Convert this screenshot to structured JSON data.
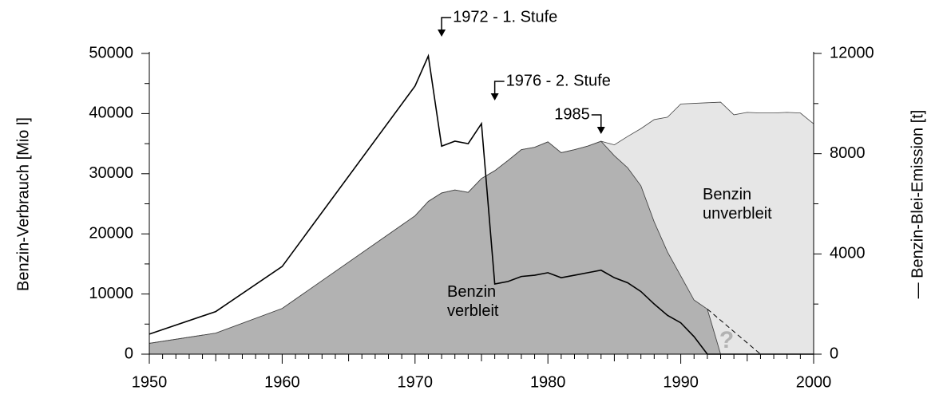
{
  "chart_data": {
    "type": "area",
    "stacked": true,
    "x": [
      1950,
      1955,
      1960,
      1970,
      1971,
      1972,
      1973,
      1974,
      1975,
      1976,
      1977,
      1978,
      1979,
      1980,
      1981,
      1982,
      1983,
      1984,
      1985,
      1986,
      1987,
      1988,
      1989,
      1990,
      1991,
      1992,
      1993,
      1994,
      1995,
      1996,
      1997,
      1998,
      1999,
      2000
    ],
    "series": [
      {
        "name": "Benzin verbleit",
        "color": "#b2b2b2",
        "values": [
          1800,
          3500,
          7600,
          23000,
          25400,
          26800,
          27300,
          26900,
          29200,
          30500,
          32200,
          34000,
          34400,
          35300,
          33500,
          34000,
          34600,
          35400,
          33000,
          31000,
          28000,
          22000,
          17000,
          13000,
          9000,
          7500,
          0,
          0,
          0,
          0,
          0,
          0,
          0,
          0
        ]
      },
      {
        "name": "Benzin unverbleit",
        "color": "#e6e6e6",
        "values": [
          0,
          0,
          0,
          0,
          0,
          0,
          0,
          0,
          0,
          0,
          0,
          0,
          0,
          0,
          0,
          0,
          0,
          0,
          1800,
          5200,
          9500,
          17000,
          22400,
          28600,
          32700,
          34300,
          41900,
          39800,
          40200,
          40100,
          40100,
          40200,
          40100,
          38300
        ]
      },
      {
        "type": "line",
        "axis": "y2",
        "color": "#000000",
        "values": [
          800,
          1700,
          3500,
          10700,
          11900,
          8300,
          8500,
          8400,
          9200,
          2800,
          2900,
          3100,
          3150,
          3250,
          3050,
          3150,
          3250,
          3350,
          3050,
          2850,
          2500,
          2000,
          1550,
          1250,
          700,
          0,
          0,
          0,
          0,
          0,
          0,
          0,
          0,
          0
        ]
      }
    ],
    "ylabel": "Benzin-Verbrauch [Mio l]",
    "y2label": "— Benzin-Blei-Emission [t]",
    "xlim": [
      1950,
      2000
    ],
    "xticks": [
      1950,
      1960,
      1970,
      1980,
      1990,
      2000
    ],
    "ylim": [
      0,
      50000
    ],
    "yticks": [
      0,
      10000,
      20000,
      30000,
      40000,
      50000
    ],
    "y2lim": [
      0,
      12000
    ],
    "y2ticks": [
      0,
      4000,
      8000,
      12000
    ],
    "annotations": [
      "1972 - 1. Stufe",
      "1976 - 2. Stufe",
      "1985"
    ],
    "projection_label": "?"
  }
}
